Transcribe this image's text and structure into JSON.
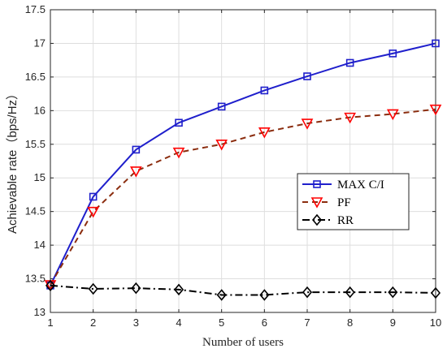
{
  "chart_data": {
    "type": "line",
    "x": [
      1,
      2,
      3,
      4,
      5,
      6,
      7,
      8,
      9,
      10
    ],
    "xlabel": "Number of users",
    "ylabel": "Achievable rate（bps/Hz）",
    "xlim": [
      1,
      10
    ],
    "ylim": [
      13,
      17.5
    ],
    "xticks": [
      "1",
      "2",
      "3",
      "4",
      "5",
      "6",
      "7",
      "8",
      "9",
      "10"
    ],
    "yticks": [
      "13",
      "13.5",
      "14",
      "14.5",
      "15",
      "15.5",
      "16",
      "16.5",
      "17",
      "17.5"
    ],
    "grid": true,
    "legend_position": "right",
    "series": [
      {
        "name": "MAX C/I",
        "color": "#1f1fcc",
        "line_style": "solid",
        "marker": "square",
        "values": [
          13.4,
          14.72,
          15.42,
          15.82,
          16.06,
          16.3,
          16.51,
          16.71,
          16.85,
          17.0
        ]
      },
      {
        "name": "PF",
        "color": "#8b2d0f",
        "marker_color": "#ff0000",
        "line_style": "dashed",
        "marker": "triangle-down",
        "values": [
          13.41,
          14.5,
          15.1,
          15.38,
          15.5,
          15.68,
          15.81,
          15.9,
          15.95,
          16.02
        ]
      },
      {
        "name": "RR",
        "color": "#000000",
        "line_style": "dashdot",
        "marker": "diamond",
        "values": [
          13.4,
          13.35,
          13.36,
          13.34,
          13.26,
          13.26,
          13.3,
          13.3,
          13.3,
          13.29
        ]
      }
    ]
  }
}
